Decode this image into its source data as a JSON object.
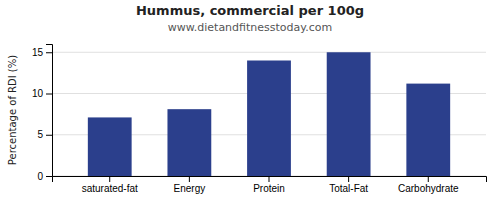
{
  "chart_data": {
    "type": "bar",
    "title": "Hummus, commercial per 100g",
    "subtitle": "www.dietandfitnesstoday.com",
    "ylabel": "Percentage of RDI (%)",
    "categories": [
      "saturated-fat",
      "Energy",
      "Protein",
      "Total-Fat",
      "Carbohydrate"
    ],
    "values": [
      7.1,
      8.1,
      14.0,
      15.0,
      11.2
    ],
    "color": "#2b3f8c",
    "ylim": [
      0,
      16
    ],
    "yticks": [
      0,
      5,
      10,
      15
    ],
    "grid": true
  }
}
